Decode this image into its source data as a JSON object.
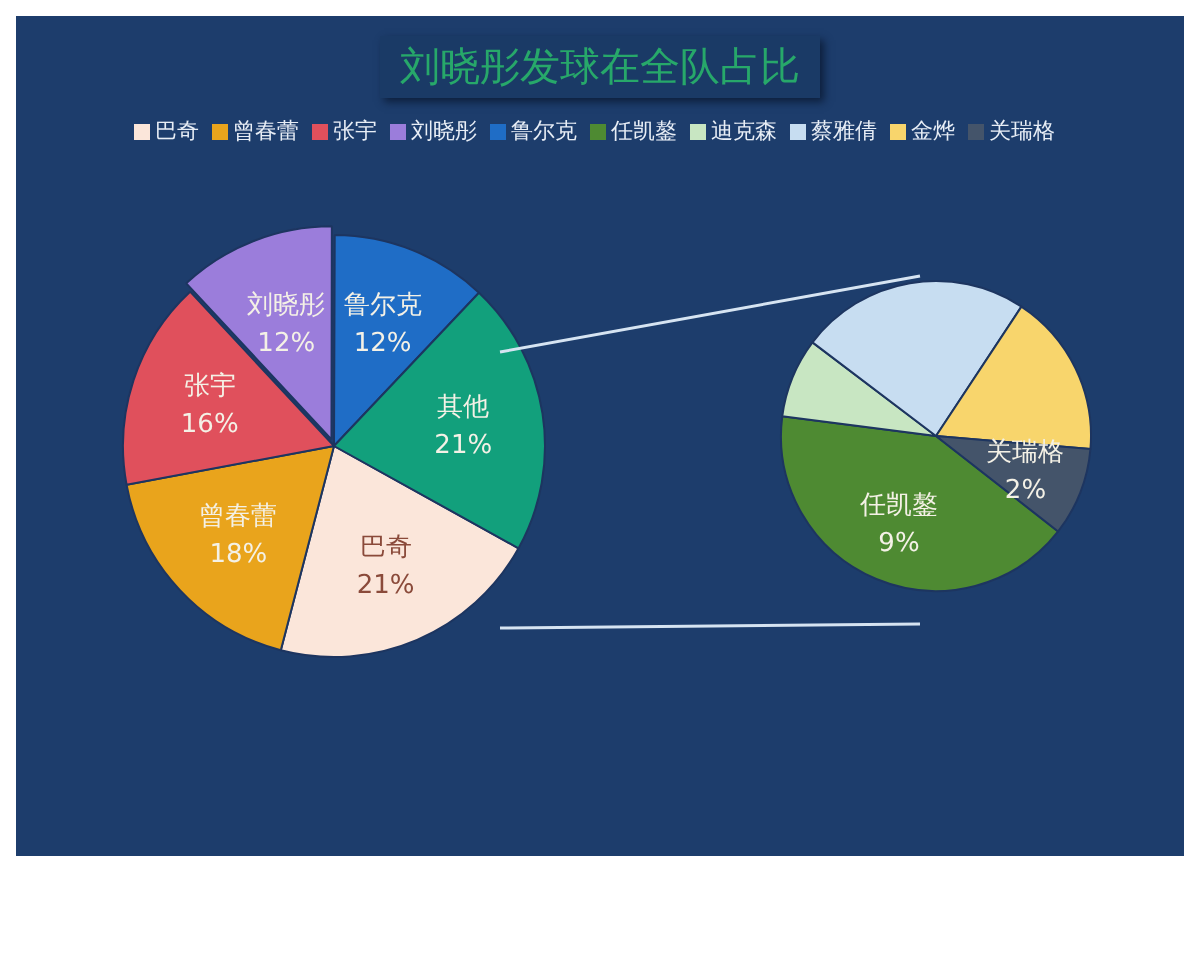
{
  "chart_data": [
    {
      "type": "pie",
      "title": "刘晓彤发球在全队占比",
      "legend": "top",
      "value_labels": [
        "21%",
        "18%",
        "16%",
        "12%",
        "12%",
        "21%"
      ],
      "categories": [
        "巴奇",
        "曾春蕾",
        "张宇",
        "刘晓彤",
        "鲁尔克",
        "其他"
      ],
      "values": [
        21,
        18,
        16,
        12,
        12,
        21
      ],
      "colors": [
        "#fbe6da",
        "#e9a41c",
        "#e0505c",
        "#9b7ddb",
        "#1f6dc6",
        "#12a07c"
      ]
    },
    {
      "type": "pie",
      "legend": "top",
      "categories": [
        "任凯鏊",
        "迪克森",
        "蔡雅倩",
        "金烨",
        "关瑞格"
      ],
      "values": [
        9,
        1.8,
        5.2,
        3.7,
        2
      ],
      "value_labels": [
        "9%",
        null,
        null,
        null,
        "2%"
      ],
      "colors": [
        "#4e8a32",
        "#c8e6c2",
        "#c7ddf1",
        "#f8d56c",
        "#44546a"
      ]
    }
  ]
}
